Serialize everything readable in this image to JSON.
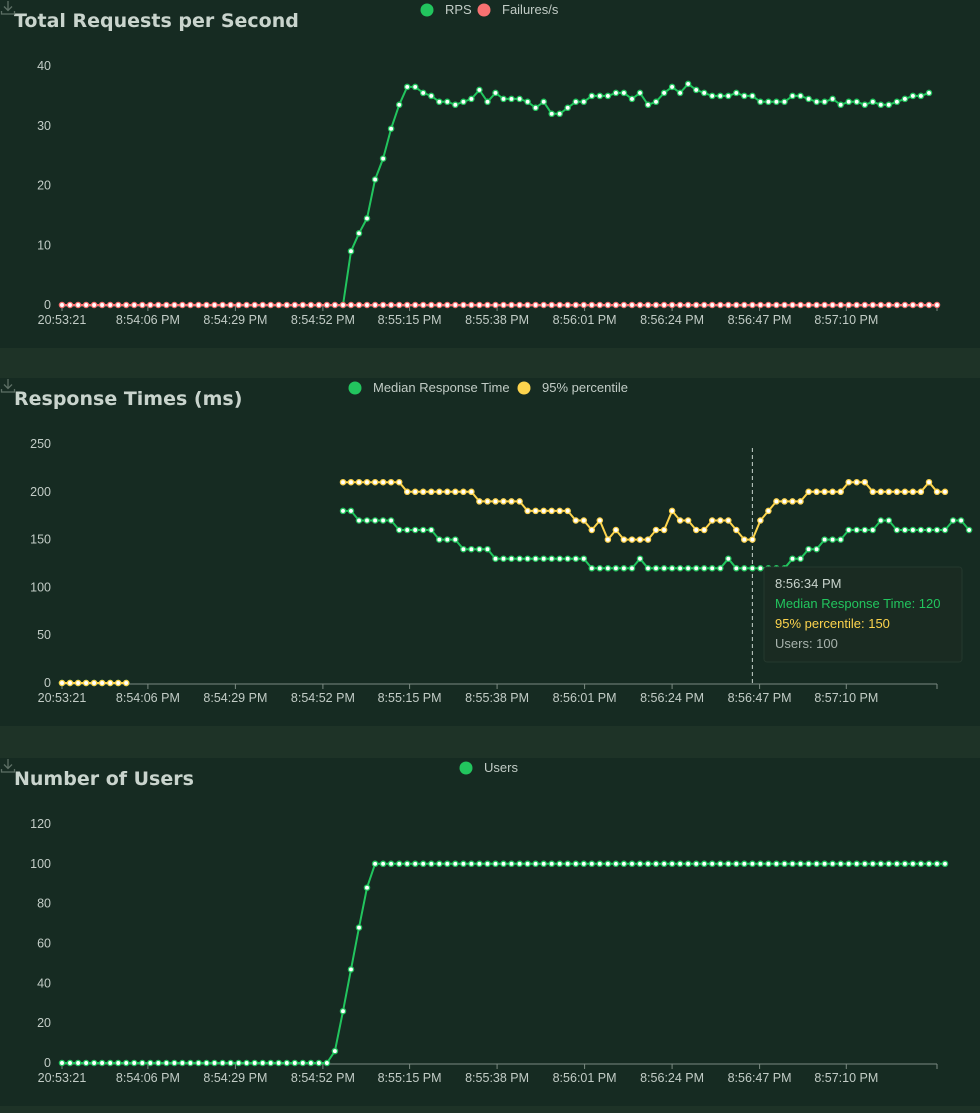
{
  "chart_data": [
    {
      "id": "rps",
      "type": "line",
      "title": "Total Requests per Second",
      "ylim": [
        0,
        40
      ],
      "yticks": [
        0,
        10,
        20,
        30,
        40
      ],
      "xlabels": [
        "20:53:21",
        "8:54:06 PM",
        "8:54:29 PM",
        "8:54:52 PM",
        "8:55:15 PM",
        "8:55:38 PM",
        "8:56:01 PM",
        "8:56:24 PM",
        "8:56:47 PM",
        "8:57:10 PM"
      ],
      "series": [
        {
          "name": "RPS",
          "color": "#22c55e",
          "values": [
            null,
            null,
            null,
            null,
            null,
            null,
            null,
            null,
            null,
            null,
            null,
            null,
            null,
            null,
            null,
            null,
            null,
            null,
            null,
            null,
            null,
            null,
            null,
            null,
            null,
            null,
            null,
            null,
            null,
            null,
            null,
            null,
            null,
            null,
            null,
            0,
            9,
            12,
            14.5,
            21,
            24.5,
            29.5,
            33.5,
            36.5,
            36.5,
            35.5,
            35,
            34,
            34,
            33.5,
            34,
            34.5,
            36,
            34,
            35.5,
            34.5,
            34.5,
            34.5,
            34,
            33,
            34,
            32,
            32,
            33,
            34,
            34,
            35,
            35,
            35,
            35.5,
            35.5,
            34.5,
            35.5,
            33.5,
            34,
            35.5,
            36.5,
            35.5,
            37,
            36,
            35.5,
            35,
            35,
            35,
            35.5,
            35,
            35,
            34,
            34,
            34,
            34,
            35,
            35,
            34.5,
            34,
            34,
            34.5,
            33.5,
            34,
            34,
            33.5,
            34,
            33.5,
            33.5,
            34,
            34.5,
            35,
            35,
            35.5
          ]
        },
        {
          "name": "Failures/s",
          "color": "#f87171",
          "values": [
            0,
            0,
            0,
            0,
            0,
            0,
            0,
            0,
            0,
            0,
            0,
            0,
            0,
            0,
            0,
            0,
            0,
            0,
            0,
            0,
            0,
            0,
            0,
            0,
            0,
            0,
            0,
            0,
            0,
            0,
            0,
            0,
            0,
            0,
            0,
            0,
            0,
            0,
            0,
            0,
            0,
            0,
            0,
            0,
            0,
            0,
            0,
            0,
            0,
            0,
            0,
            0,
            0,
            0,
            0,
            0,
            0,
            0,
            0,
            0,
            0,
            0,
            0,
            0,
            0,
            0,
            0,
            0,
            0,
            0,
            0,
            0,
            0,
            0,
            0,
            0,
            0,
            0,
            0,
            0,
            0,
            0,
            0,
            0,
            0,
            0,
            0,
            0,
            0,
            0,
            0,
            0,
            0,
            0,
            0,
            0,
            0,
            0,
            0,
            0,
            0,
            0,
            0,
            0,
            0,
            0,
            0,
            0,
            0,
            0
          ]
        }
      ]
    },
    {
      "id": "rt",
      "type": "line",
      "title": "Response Times (ms)",
      "ylim": [
        0,
        250
      ],
      "yticks": [
        0,
        50,
        100,
        150,
        200,
        250
      ],
      "xlabels": [
        "20:53:21",
        "8:54:06 PM",
        "8:54:29 PM",
        "8:54:52 PM",
        "8:55:15 PM",
        "8:55:38 PM",
        "8:56:01 PM",
        "8:56:24 PM",
        "8:56:47 PM",
        "8:57:10 PM"
      ],
      "series": [
        {
          "name": "Median Response Time",
          "color": "#22c55e",
          "values": [
            0,
            0,
            0,
            0,
            0,
            0,
            0,
            0,
            0,
            null,
            null,
            null,
            null,
            null,
            null,
            null,
            null,
            null,
            null,
            null,
            null,
            null,
            null,
            null,
            null,
            null,
            null,
            null,
            null,
            null,
            null,
            null,
            null,
            null,
            null,
            180,
            180,
            170,
            170,
            170,
            170,
            170,
            160,
            160,
            160,
            160,
            160,
            150,
            150,
            150,
            140,
            140,
            140,
            140,
            130,
            130,
            130,
            130,
            130,
            130,
            130,
            130,
            130,
            130,
            130,
            130,
            120,
            120,
            120,
            120,
            120,
            120,
            130,
            120,
            120,
            120,
            120,
            120,
            120,
            120,
            120,
            120,
            120,
            130,
            120,
            120,
            120,
            120,
            120,
            120,
            120,
            130,
            130,
            140,
            140,
            150,
            150,
            150,
            160,
            160,
            160,
            160,
            170,
            170,
            160,
            160,
            160,
            160,
            160,
            160,
            160,
            170,
            170,
            160
          ]
        },
        {
          "name": "95% percentile",
          "color": "#fcd34d",
          "values": [
            0,
            0,
            0,
            0,
            0,
            0,
            0,
            0,
            0,
            null,
            null,
            null,
            null,
            null,
            null,
            null,
            null,
            null,
            null,
            null,
            null,
            null,
            null,
            null,
            null,
            null,
            null,
            null,
            null,
            null,
            null,
            null,
            null,
            null,
            null,
            210,
            210,
            210,
            210,
            210,
            210,
            210,
            210,
            200,
            200,
            200,
            200,
            200,
            200,
            200,
            200,
            200,
            190,
            190,
            190,
            190,
            190,
            190,
            180,
            180,
            180,
            180,
            180,
            180,
            170,
            170,
            160,
            170,
            150,
            160,
            150,
            150,
            150,
            150,
            160,
            160,
            180,
            170,
            170,
            160,
            160,
            170,
            170,
            170,
            160,
            150,
            150,
            170,
            180,
            190,
            190,
            190,
            190,
            200,
            200,
            200,
            200,
            200,
            210,
            210,
            210,
            200,
            200,
            200,
            200,
            200,
            200,
            200,
            210,
            200,
            200
          ]
        }
      ],
      "tooltip": {
        "time": "8:56:34 PM",
        "median": "Median Response Time: 120",
        "p95": "95% percentile: 150",
        "users": "Users: 100"
      }
    },
    {
      "id": "users",
      "type": "line",
      "title": "Number of Users",
      "ylim": [
        0,
        120
      ],
      "yticks": [
        0,
        20,
        40,
        60,
        80,
        100,
        120
      ],
      "xlabels": [
        "20:53:21",
        "8:54:06 PM",
        "8:54:29 PM",
        "8:54:52 PM",
        "8:55:15 PM",
        "8:55:38 PM",
        "8:56:01 PM",
        "8:56:24 PM",
        "8:56:47 PM",
        "8:57:10 PM"
      ],
      "series": [
        {
          "name": "Users",
          "color": "#22c55e",
          "values": [
            0,
            0,
            0,
            0,
            0,
            0,
            0,
            0,
            0,
            0,
            0,
            0,
            0,
            0,
            0,
            0,
            0,
            0,
            0,
            0,
            0,
            0,
            0,
            0,
            0,
            0,
            0,
            0,
            0,
            0,
            0,
            0,
            0,
            0,
            6,
            26,
            47,
            68,
            88,
            100,
            100,
            100,
            100,
            100,
            100,
            100,
            100,
            100,
            100,
            100,
            100,
            100,
            100,
            100,
            100,
            100,
            100,
            100,
            100,
            100,
            100,
            100,
            100,
            100,
            100,
            100,
            100,
            100,
            100,
            100,
            100,
            100,
            100,
            100,
            100,
            100,
            100,
            100,
            100,
            100,
            100,
            100,
            100,
            100,
            100,
            100,
            100,
            100,
            100,
            100,
            100,
            100,
            100,
            100,
            100,
            100,
            100,
            100,
            100,
            100,
            100,
            100,
            100,
            100,
            100,
            100,
            100,
            100,
            100,
            100,
            100
          ]
        }
      ]
    }
  ],
  "icons": {
    "download": "download-icon"
  }
}
